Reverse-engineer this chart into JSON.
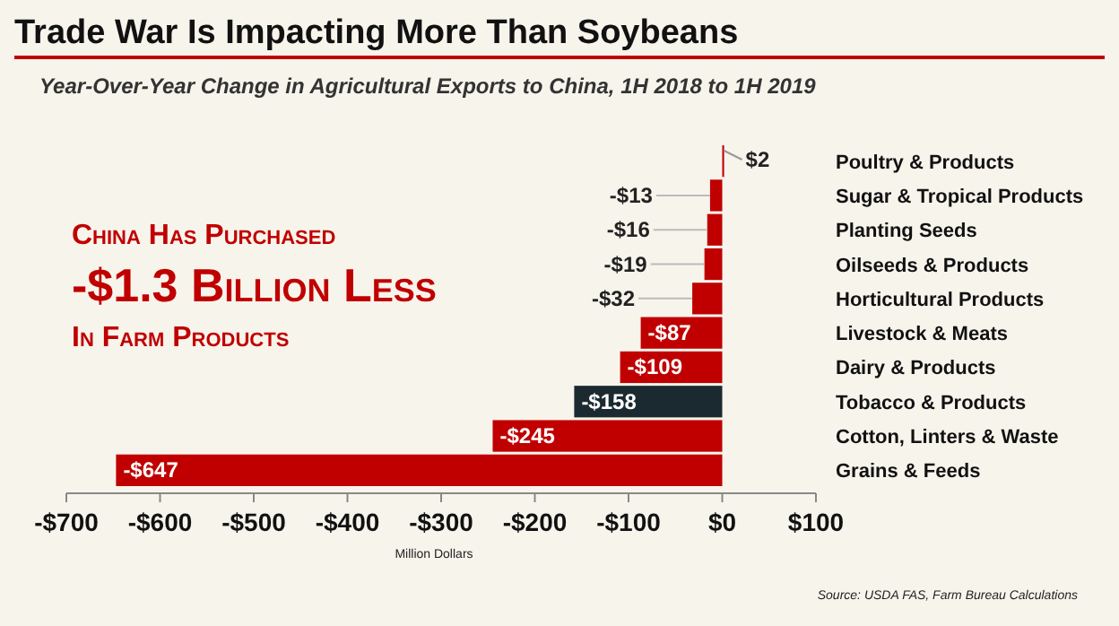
{
  "chart_data": {
    "type": "bar",
    "orientation": "horizontal",
    "title": "Trade War Is Impacting More Than Soybeans",
    "subtitle": "Year-Over-Year Change in Agricultural Exports to China, 1H 2018 to 1H 2019",
    "categories": [
      "Poultry & Products",
      "Sugar & Tropical Products",
      "Planting Seeds",
      "Oilseeds & Products",
      "Horticultural Products",
      "Livestock & Meats",
      "Dairy & Products",
      "Tobacco & Products",
      "Cotton, Linters & Waste",
      "Grains & Feeds"
    ],
    "values": [
      2,
      -13,
      -16,
      -19,
      -32,
      -87,
      -109,
      -158,
      -245,
      -647
    ],
    "colors": [
      "#c00000",
      "#c00000",
      "#c00000",
      "#c00000",
      "#c00000",
      "#c00000",
      "#c00000",
      "#1b2a30",
      "#c00000",
      "#c00000"
    ],
    "value_labels": [
      "$2",
      "-$13",
      "-$16",
      "-$19",
      "-$32",
      "-$87",
      "-$109",
      "-$158",
      "-$245",
      "-$647"
    ],
    "xlim": [
      -700,
      100
    ],
    "xticks": [
      {
        "value": -700,
        "label": "-$700"
      },
      {
        "value": -600,
        "label": "-$600"
      },
      {
        "value": -500,
        "label": "-$500"
      },
      {
        "value": -400,
        "label": "-$400"
      },
      {
        "value": -300,
        "label": "-$300"
      },
      {
        "value": -200,
        "label": "-$200"
      },
      {
        "value": -100,
        "label": "-$100"
      },
      {
        "value": 0,
        "label": "$0"
      },
      {
        "value": 100,
        "label": "$100"
      }
    ],
    "xlabel": "Million Dollars",
    "annotations": [
      "China Has Purchased",
      "-$1.3 Billion Less",
      "In Farm Products",
      "Source: USDA FAS, Farm Bureau Calculations"
    ]
  }
}
